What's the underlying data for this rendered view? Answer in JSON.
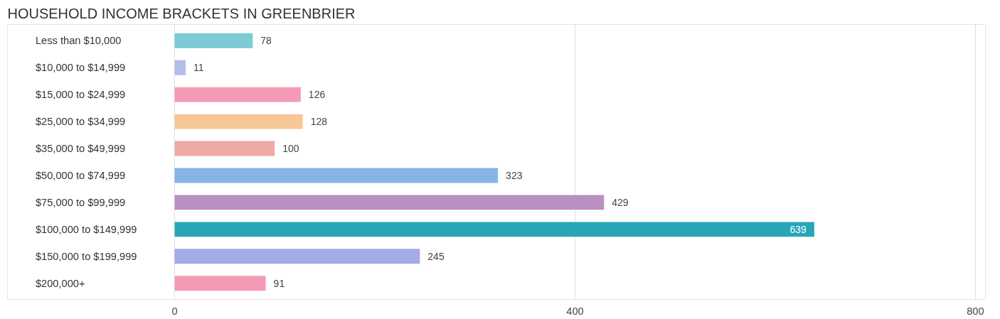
{
  "chart_data": {
    "type": "bar",
    "orientation": "horizontal",
    "title": "HOUSEHOLD INCOME BRACKETS IN GREENBRIER",
    "categories": [
      "Less than $10,000",
      "$10,000 to $14,999",
      "$15,000 to $24,999",
      "$25,000 to $34,999",
      "$35,000 to $49,999",
      "$50,000 to $74,999",
      "$75,000 to $99,999",
      "$100,000 to $149,999",
      "$150,000 to $199,999",
      "$200,000+"
    ],
    "values": [
      78,
      11,
      126,
      128,
      100,
      323,
      429,
      639,
      245,
      91
    ],
    "colors": [
      "#7ccbd4",
      "#b3bdeb",
      "#f59ab5",
      "#f8c796",
      "#efaaa8",
      "#86b4e4",
      "#b990c0",
      "#27a6b8",
      "#a3aae6",
      "#f59ab5"
    ],
    "xlim": [
      -167,
      810
    ],
    "xticks": [
      0,
      400,
      800
    ],
    "grid": "x",
    "data_labels": true
  }
}
